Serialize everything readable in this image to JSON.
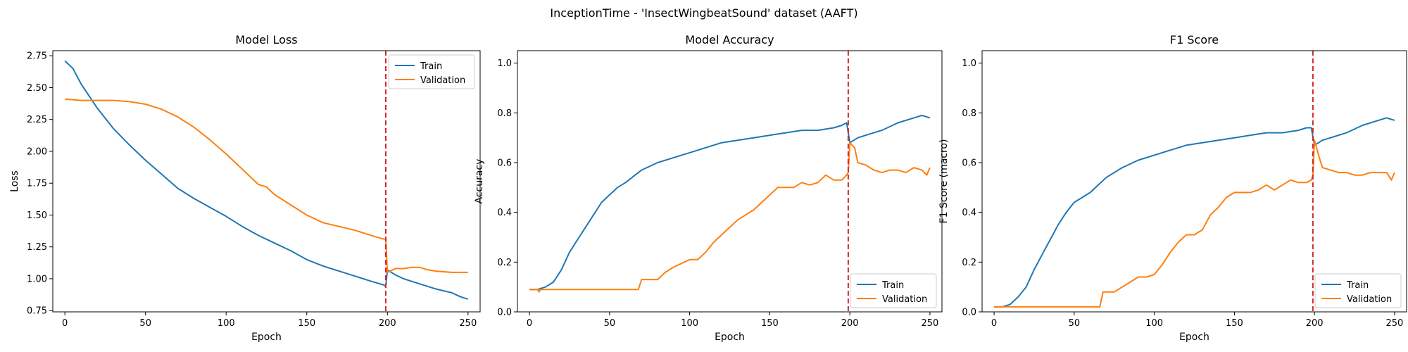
{
  "suptitle": "InceptionTime - 'InsectWingbeatSound' dataset (AAFT)",
  "colors": {
    "train": "#1f77b4",
    "validation": "#ff7f0e",
    "marker": "#d62728"
  },
  "chart_data": [
    {
      "type": "line",
      "title": "Model Loss",
      "xlabel": "Epoch",
      "ylabel": "Loss",
      "xlim": [
        -7.5,
        257.5
      ],
      "ylim": [
        0.74,
        2.79
      ],
      "xticks": [
        0,
        50,
        100,
        150,
        200,
        250
      ],
      "yticks": [
        0.75,
        1.0,
        1.25,
        1.5,
        1.75,
        2.0,
        2.25,
        2.5,
        2.75
      ],
      "ytick_labels": [
        "0.75",
        "1.00",
        "1.25",
        "1.50",
        "1.75",
        "2.00",
        "2.25",
        "2.50",
        "2.75"
      ],
      "legend_position": "upper right",
      "vline": {
        "x": 199,
        "style": "dashed"
      },
      "grid": false,
      "series": [
        {
          "name": "Train",
          "x": [
            0,
            5,
            10,
            20,
            30,
            40,
            50,
            60,
            70,
            80,
            90,
            100,
            110,
            120,
            130,
            140,
            150,
            160,
            170,
            180,
            190,
            198,
            199,
            200,
            205,
            210,
            220,
            230,
            240,
            245,
            250
          ],
          "values": [
            2.71,
            2.65,
            2.53,
            2.34,
            2.18,
            2.05,
            1.93,
            1.82,
            1.71,
            1.63,
            1.56,
            1.49,
            1.41,
            1.34,
            1.28,
            1.22,
            1.15,
            1.1,
            1.06,
            1.02,
            0.98,
            0.95,
            0.94,
            1.07,
            1.03,
            1.0,
            0.96,
            0.92,
            0.89,
            0.86,
            0.84
          ]
        },
        {
          "name": "Validation",
          "x": [
            0,
            10,
            20,
            30,
            40,
            50,
            60,
            70,
            80,
            90,
            100,
            110,
            120,
            125,
            130,
            140,
            150,
            160,
            170,
            180,
            190,
            198,
            199,
            200,
            205,
            210,
            215,
            220,
            225,
            230,
            240,
            250
          ],
          "values": [
            2.41,
            2.4,
            2.4,
            2.4,
            2.39,
            2.37,
            2.33,
            2.27,
            2.19,
            2.09,
            1.98,
            1.86,
            1.74,
            1.72,
            1.66,
            1.58,
            1.5,
            1.44,
            1.41,
            1.38,
            1.34,
            1.31,
            1.31,
            1.05,
            1.08,
            1.08,
            1.09,
            1.09,
            1.07,
            1.06,
            1.05,
            1.05
          ]
        }
      ]
    },
    {
      "type": "line",
      "title": "Model Accuracy",
      "xlabel": "Epoch",
      "ylabel": "Accuracy",
      "xlim": [
        -7.5,
        257.5
      ],
      "ylim": [
        0.0,
        1.05
      ],
      "xticks": [
        0,
        50,
        100,
        150,
        200,
        250
      ],
      "yticks": [
        0.0,
        0.2,
        0.4,
        0.6,
        0.8,
        1.0
      ],
      "ytick_labels": [
        "0.0",
        "0.2",
        "0.4",
        "0.6",
        "0.8",
        "1.0"
      ],
      "legend_position": "lower right",
      "vline": {
        "x": 199,
        "style": "dashed"
      },
      "grid": false,
      "series": [
        {
          "name": "Train",
          "x": [
            0,
            5,
            10,
            15,
            20,
            25,
            30,
            35,
            40,
            45,
            50,
            55,
            60,
            70,
            80,
            90,
            100,
            110,
            120,
            130,
            140,
            150,
            160,
            170,
            180,
            190,
            195,
            198,
            200,
            205,
            210,
            220,
            230,
            240,
            245,
            250
          ],
          "values": [
            0.09,
            0.09,
            0.1,
            0.12,
            0.17,
            0.24,
            0.29,
            0.34,
            0.39,
            0.44,
            0.47,
            0.5,
            0.52,
            0.57,
            0.6,
            0.62,
            0.64,
            0.66,
            0.68,
            0.69,
            0.7,
            0.71,
            0.72,
            0.73,
            0.73,
            0.74,
            0.75,
            0.76,
            0.68,
            0.7,
            0.71,
            0.73,
            0.76,
            0.78,
            0.79,
            0.78
          ]
        },
        {
          "name": "Validation",
          "x": [
            0,
            5,
            6,
            7,
            10,
            60,
            68,
            70,
            80,
            85,
            90,
            100,
            105,
            110,
            115,
            120,
            125,
            130,
            135,
            140,
            145,
            150,
            155,
            160,
            165,
            170,
            175,
            180,
            185,
            190,
            195,
            198,
            199,
            200,
            203,
            205,
            210,
            215,
            220,
            225,
            230,
            235,
            240,
            245,
            248,
            250
          ],
          "values": [
            0.09,
            0.09,
            0.08,
            0.09,
            0.09,
            0.09,
            0.09,
            0.13,
            0.13,
            0.16,
            0.18,
            0.21,
            0.21,
            0.24,
            0.28,
            0.31,
            0.34,
            0.37,
            0.39,
            0.41,
            0.44,
            0.47,
            0.5,
            0.5,
            0.5,
            0.52,
            0.51,
            0.52,
            0.55,
            0.53,
            0.53,
            0.55,
            0.56,
            0.68,
            0.66,
            0.6,
            0.59,
            0.57,
            0.56,
            0.57,
            0.57,
            0.56,
            0.58,
            0.57,
            0.55,
            0.58
          ]
        }
      ]
    },
    {
      "type": "line",
      "title": "F1 Score",
      "xlabel": "Epoch",
      "ylabel": "F1 Score (macro)",
      "xlim": [
        -7.5,
        257.5
      ],
      "ylim": [
        0.0,
        1.05
      ],
      "xticks": [
        0,
        50,
        100,
        150,
        200,
        250
      ],
      "yticks": [
        0.0,
        0.2,
        0.4,
        0.6,
        0.8,
        1.0
      ],
      "ytick_labels": [
        "0.0",
        "0.2",
        "0.4",
        "0.6",
        "0.8",
        "1.0"
      ],
      "legend_position": "lower right",
      "vline": {
        "x": 199,
        "style": "dashed"
      },
      "grid": false,
      "series": [
        {
          "name": "Train",
          "x": [
            0,
            5,
            10,
            15,
            20,
            25,
            30,
            35,
            40,
            45,
            50,
            55,
            60,
            70,
            80,
            90,
            100,
            110,
            120,
            130,
            140,
            150,
            160,
            170,
            180,
            190,
            195,
            198,
            200,
            205,
            210,
            220,
            230,
            240,
            245,
            250
          ],
          "values": [
            0.02,
            0.02,
            0.03,
            0.06,
            0.1,
            0.17,
            0.23,
            0.29,
            0.35,
            0.4,
            0.44,
            0.46,
            0.48,
            0.54,
            0.58,
            0.61,
            0.63,
            0.65,
            0.67,
            0.68,
            0.69,
            0.7,
            0.71,
            0.72,
            0.72,
            0.73,
            0.74,
            0.74,
            0.67,
            0.69,
            0.7,
            0.72,
            0.75,
            0.77,
            0.78,
            0.77
          ]
        },
        {
          "name": "Validation",
          "x": [
            0,
            10,
            60,
            66,
            68,
            75,
            80,
            85,
            90,
            95,
            100,
            105,
            110,
            115,
            120,
            125,
            130,
            135,
            140,
            145,
            150,
            155,
            160,
            165,
            170,
            175,
            180,
            185,
            190,
            195,
            198,
            199,
            200,
            203,
            205,
            210,
            215,
            220,
            225,
            230,
            235,
            240,
            245,
            248,
            250
          ],
          "values": [
            0.02,
            0.02,
            0.02,
            0.02,
            0.08,
            0.08,
            0.1,
            0.12,
            0.14,
            0.14,
            0.15,
            0.19,
            0.24,
            0.28,
            0.31,
            0.31,
            0.33,
            0.39,
            0.42,
            0.46,
            0.48,
            0.48,
            0.48,
            0.49,
            0.51,
            0.49,
            0.51,
            0.53,
            0.52,
            0.52,
            0.53,
            0.55,
            0.69,
            0.62,
            0.58,
            0.57,
            0.56,
            0.56,
            0.55,
            0.55,
            0.56,
            0.56,
            0.56,
            0.53,
            0.56
          ]
        }
      ]
    }
  ]
}
